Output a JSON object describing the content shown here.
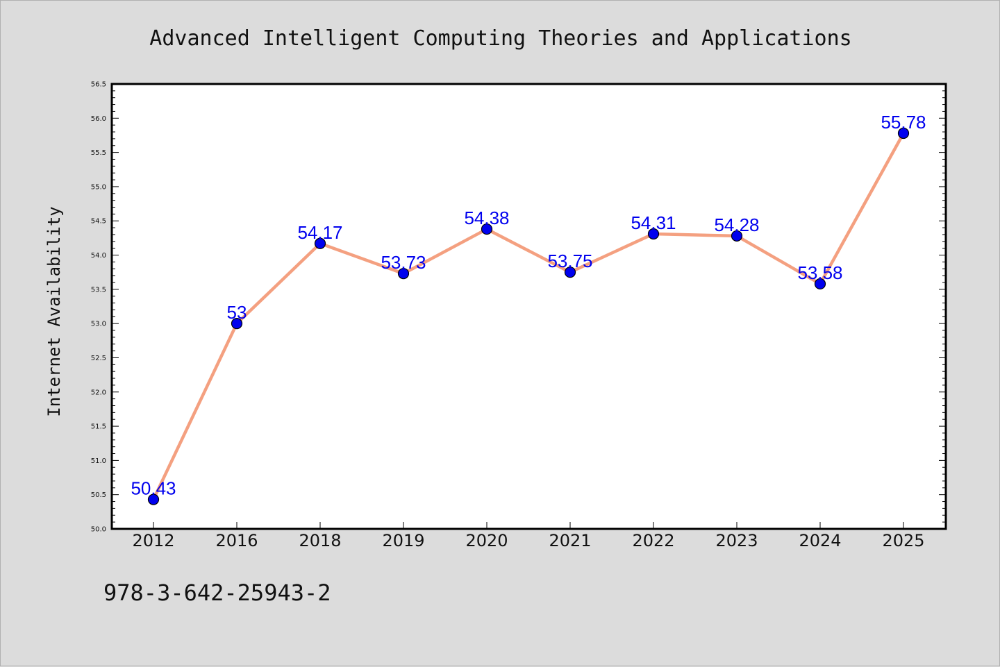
{
  "chart_data": {
    "type": "line",
    "title": "Advanced Intelligent Computing Theories and Applications",
    "ylabel": "Internet Availability",
    "xlabel": "",
    "categories": [
      "2012",
      "2016",
      "2018",
      "2019",
      "2020",
      "2021",
      "2022",
      "2023",
      "2024",
      "2025"
    ],
    "series": [
      {
        "values": [
          50.43,
          53,
          54.17,
          53.73,
          54.38,
          53.75,
          54.31,
          54.28,
          53.58,
          55.78
        ],
        "labels": [
          "50.43",
          "53",
          "54.17",
          "53.73",
          "54.38",
          "53.75",
          "54.31",
          "54.28",
          "53.58",
          "55.78"
        ],
        "line_color": "#f4a080",
        "marker_color": "#0000ee"
      }
    ],
    "ylim": [
      50.0,
      56.5
    ],
    "y_ticks": [
      "50.0",
      "50.5",
      "51.0",
      "51.5",
      "52.0",
      "52.5",
      "53.0",
      "53.5",
      "54.0",
      "54.5",
      "55.0",
      "55.5",
      "56.0",
      "56.5"
    ],
    "grid": false,
    "legend": "none",
    "label_color": "#0000ee",
    "footnote": "978-3-642-25943-2"
  }
}
